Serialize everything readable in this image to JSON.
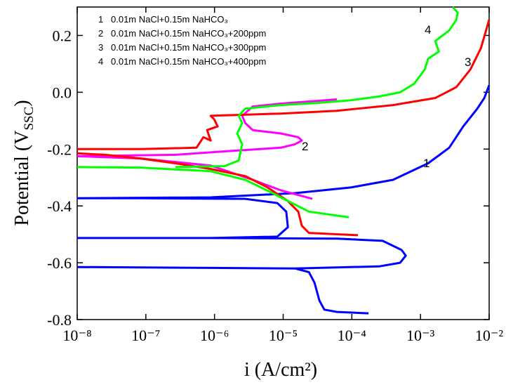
{
  "chart_data": {
    "type": "line",
    "x_label": "i (A/cm²)",
    "y_label": "Potential (V",
    "y_label_sub": "SSC",
    "y_label_end": ")",
    "xscale": "log",
    "xlim": [
      1e-08,
      0.01
    ],
    "xticks": [
      {
        "value": 1e-08,
        "label": "10⁻⁸"
      },
      {
        "value": 1e-07,
        "label": "10⁻⁷"
      },
      {
        "value": 1e-06,
        "label": "10⁻⁶"
      },
      {
        "value": 1e-05,
        "label": "10⁻⁵"
      },
      {
        "value": 0.0001,
        "label": "10⁻⁴"
      },
      {
        "value": 0.001,
        "label": "10⁻³"
      },
      {
        "value": 0.01,
        "label": "10⁻²"
      }
    ],
    "ylim": [
      -0.8,
      0.3
    ],
    "yticks": [
      -0.8,
      -0.6,
      -0.4,
      -0.2,
      {
        "value": 0,
        "label": "0.0"
      },
      0.2
    ],
    "legend": "upper left",
    "series": [
      {
        "name": "0.01m NaCl+0.15m NaHCO₃",
        "label": "1",
        "color": "#0000ff",
        "x": [
          0.000175,
          6.07e-05,
          3.97e-05,
          3.37e-05,
          2.86e-05,
          2.37e-05,
          1.48e-05,
          8.8e-07,
          1e-08,
          null,
          1.48e-05,
          0.000249,
          0.000505,
          0.00061,
          0.00053,
          0.000281,
          6.07e-05,
          8.8e-07,
          1e-08,
          null,
          8.8e-07,
          8.2e-06,
          1.17e-05,
          1.11e-05,
          8.2e-06,
          2.8e-06,
          8.3e-08,
          1e-08,
          null,
          1e-08,
          8.8e-07,
          1.48e-05,
          9.7e-05,
          0.000399,
          0.00129,
          0.00262,
          0.0042,
          0.0067,
          0.0085,
          0.01
        ],
        "values": [
          -0.778,
          -0.773,
          -0.765,
          -0.733,
          -0.67,
          -0.633,
          -0.62,
          -0.618,
          -0.615,
          null,
          -0.62,
          -0.613,
          -0.6,
          -0.575,
          -0.555,
          -0.523,
          -0.515,
          -0.513,
          -0.513,
          null,
          -0.513,
          -0.508,
          -0.475,
          -0.42,
          -0.39,
          -0.375,
          -0.373,
          -0.373,
          null,
          -0.373,
          -0.37,
          -0.355,
          -0.335,
          -0.308,
          -0.25,
          -0.195,
          -0.12,
          -0.058,
          -0.02,
          0.025
        ]
      },
      {
        "name": "0.01m NaCl+0.15m NaHCO₃+200ppm",
        "label": "2",
        "color": "#ff00ff",
        "x": [
          2.66e-05,
          9.2e-06,
          3.6e-06,
          8.8e-07,
          8.3e-08,
          1e-08,
          null,
          1e-08,
          2.7e-07,
          1.4e-06,
          9.2e-06,
          1.48e-05,
          1.87e-05,
          1.66e-05,
          9.2e-06,
          3.6e-06,
          2.8e-06,
          2.53e-06,
          3.6e-06,
          9.2e-06,
          6.07e-05
        ],
        "values": [
          -0.375,
          -0.345,
          -0.308,
          -0.258,
          -0.233,
          -0.225,
          null,
          -0.225,
          -0.22,
          -0.208,
          -0.195,
          -0.183,
          -0.17,
          -0.158,
          -0.145,
          -0.133,
          -0.108,
          -0.083,
          -0.05,
          -0.04,
          -0.025
        ]
      },
      {
        "name": "0.01m NaCl+0.15m NaHCO₃+300ppm",
        "label": "3",
        "color": "#ff0000",
        "x": [
          0.000123,
          2.37e-05,
          1.87e-05,
          1.66e-05,
          1.17e-05,
          5.77e-06,
          2.8e-06,
          8.8e-07,
          2.7e-07,
          8.3e-08,
          2.57e-08,
          1e-08,
          null,
          1e-08,
          8.3e-08,
          5.47e-07,
          6.9e-07,
          8.8e-07,
          7.8e-07,
          1.11e-06,
          9.9e-07,
          8.8e-07,
          9.2e-06,
          6.07e-05,
          0.000399,
          0.00164,
          0.00332,
          0.00532,
          0.00757,
          0.01
        ],
        "values": [
          -0.503,
          -0.495,
          -0.47,
          -0.42,
          -0.383,
          -0.333,
          -0.295,
          -0.27,
          -0.25,
          -0.233,
          -0.22,
          -0.215,
          null,
          -0.2,
          -0.2,
          -0.195,
          -0.158,
          -0.17,
          -0.133,
          -0.12,
          -0.095,
          -0.083,
          -0.075,
          -0.065,
          -0.045,
          -0.02,
          0.018,
          0.08,
          0.155,
          0.255
        ]
      },
      {
        "name": "0.01m NaCl+0.15m NaHCO₃+400ppm",
        "label": "4",
        "color": "#00ff00",
        "x": [
          9.06e-05,
          2.37e-05,
          1.48e-05,
          9.2e-06,
          5.77e-06,
          2.8e-06,
          8.8e-07,
          8.3e-08,
          1e-08,
          null,
          2.7e-07,
          1.4e-06,
          2.25e-06,
          2.53e-06,
          2.14e-06,
          2.53e-06,
          2.25e-06,
          2.8e-06,
          9.2e-06,
          3e-05,
          9.7e-05,
          0.000249,
          0.000505,
          0.00081,
          0.00115,
          0.00129,
          0.00185,
          0.00164,
          0.00262,
          0.00332,
          0.00348,
          0.00295
        ],
        "values": [
          -0.44,
          -0.42,
          -0.395,
          -0.37,
          -0.345,
          -0.308,
          -0.278,
          -0.265,
          -0.263,
          null,
          -0.263,
          -0.26,
          -0.24,
          -0.183,
          -0.145,
          -0.108,
          -0.083,
          -0.058,
          -0.045,
          -0.038,
          -0.028,
          -0.015,
          0,
          0.03,
          0.08,
          0.118,
          0.143,
          0.18,
          0.218,
          0.255,
          0.28,
          0.3
        ]
      }
    ]
  }
}
